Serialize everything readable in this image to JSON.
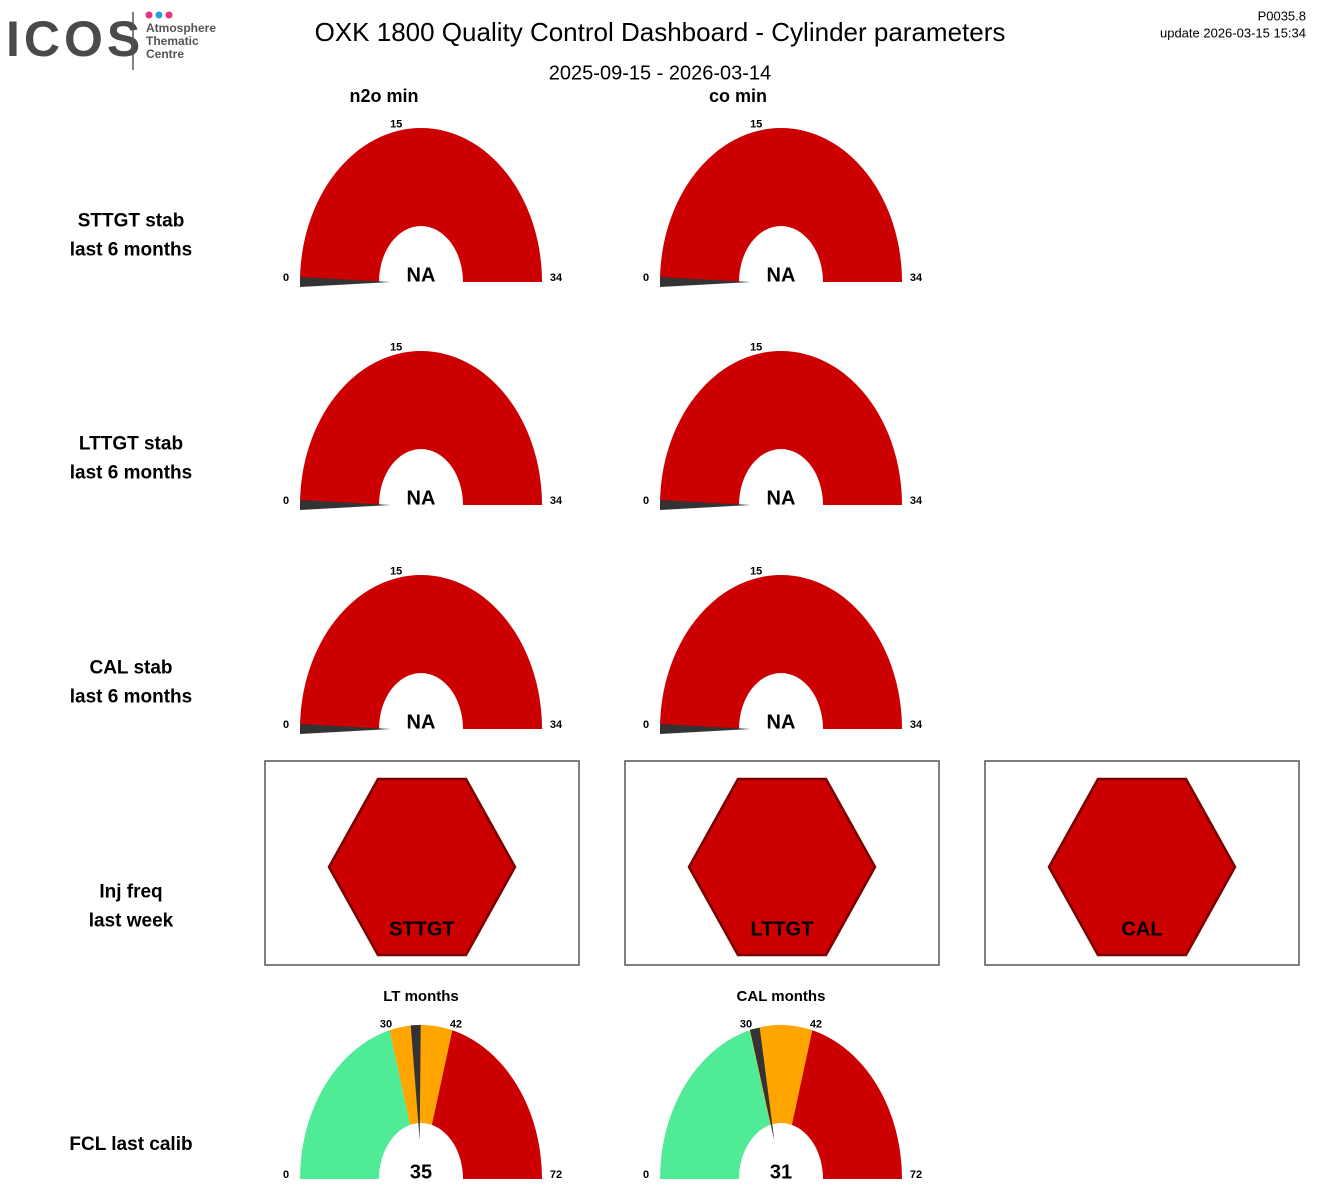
{
  "header": {
    "logo": "ICOS",
    "logo_sub": [
      "Atmosphere",
      "Thematic",
      "Centre"
    ],
    "title": "OXK 1800 Quality Control Dashboard - Cylinder parameters",
    "period": "2025-09-15 - 2026-03-14",
    "version": "P0035.8",
    "update": "update  2026-03-15 15:34"
  },
  "columns": [
    "n2o min",
    "co min"
  ],
  "stability": [
    {
      "label": [
        "STTGT stab",
        "last 6 months"
      ],
      "gauges": [
        {
          "range": [
            0,
            34
          ],
          "ticks": [
            0,
            15,
            34
          ],
          "bands": [
            {
              "from": 0,
              "to": 34,
              "color": "#cc0000"
            }
          ],
          "value": null,
          "value_label": "NA"
        },
        {
          "range": [
            0,
            34
          ],
          "ticks": [
            0,
            15,
            34
          ],
          "bands": [
            {
              "from": 0,
              "to": 34,
              "color": "#cc0000"
            }
          ],
          "value": null,
          "value_label": "NA"
        }
      ]
    },
    {
      "label": [
        "LTTGT stab",
        "last 6 months"
      ],
      "gauges": [
        {
          "range": [
            0,
            34
          ],
          "ticks": [
            0,
            15,
            34
          ],
          "bands": [
            {
              "from": 0,
              "to": 34,
              "color": "#cc0000"
            }
          ],
          "value": null,
          "value_label": "NA"
        },
        {
          "range": [
            0,
            34
          ],
          "ticks": [
            0,
            15,
            34
          ],
          "bands": [
            {
              "from": 0,
              "to": 34,
              "color": "#cc0000"
            }
          ],
          "value": null,
          "value_label": "NA"
        }
      ]
    },
    {
      "label": [
        "CAL stab",
        "last 6 months"
      ],
      "gauges": [
        {
          "range": [
            0,
            34
          ],
          "ticks": [
            0,
            15,
            34
          ],
          "bands": [
            {
              "from": 0,
              "to": 34,
              "color": "#cc0000"
            }
          ],
          "value": null,
          "value_label": "NA"
        },
        {
          "range": [
            0,
            34
          ],
          "ticks": [
            0,
            15,
            34
          ],
          "bands": [
            {
              "from": 0,
              "to": 34,
              "color": "#cc0000"
            }
          ],
          "value": null,
          "value_label": "NA"
        }
      ]
    }
  ],
  "inj_freq": {
    "label": [
      "Inj freq",
      "last week"
    ],
    "items": [
      {
        "label": "STTGT",
        "color": "#cc0000"
      },
      {
        "label": "LTTGT",
        "color": "#cc0000"
      },
      {
        "label": "CAL",
        "color": "#cc0000"
      }
    ]
  },
  "fcl": {
    "label": "FCL last calib",
    "gauges": [
      {
        "title": "LT months",
        "range": [
          0,
          72
        ],
        "ticks": [
          0,
          30,
          42,
          72
        ],
        "bands": [
          {
            "from": 0,
            "to": 30,
            "color": "#50eb96"
          },
          {
            "from": 30,
            "to": 42,
            "color": "#ffa500"
          },
          {
            "from": 42,
            "to": 72,
            "color": "#cc0000"
          }
        ],
        "value": 35
      },
      {
        "title": "CAL months",
        "range": [
          0,
          72
        ],
        "ticks": [
          0,
          30,
          42,
          72
        ],
        "bands": [
          {
            "from": 0,
            "to": 30,
            "color": "#50eb96"
          },
          {
            "from": 30,
            "to": 42,
            "color": "#ffa500"
          },
          {
            "from": 42,
            "to": 72,
            "color": "#cc0000"
          }
        ],
        "value": 31
      }
    ]
  }
}
